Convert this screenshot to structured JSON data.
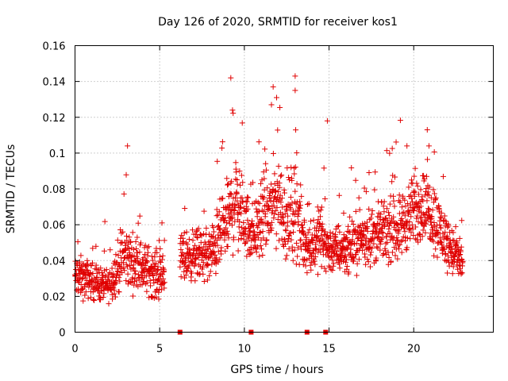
{
  "chart_data": {
    "type": "scatter",
    "title": "Day 126 of 2020, SRMTID for receiver kos1",
    "xlabel": "GPS time / hours",
    "ylabel": "SRMTID / TECUs",
    "xlim": [
      0,
      24.7
    ],
    "ylim": [
      0,
      0.16
    ],
    "xticks": [
      0,
      5,
      10,
      15,
      20
    ],
    "xtick_labels": [
      "0",
      "5",
      "10",
      "15",
      "20"
    ],
    "yticks": [
      0,
      0.02,
      0.04,
      0.06,
      0.08,
      0.1,
      0.12,
      0.14,
      0.16
    ],
    "ytick_labels": [
      "0",
      "0.02",
      "0.04",
      "0.06",
      "0.08",
      "0.1",
      "0.12",
      "0.14",
      "0.16"
    ],
    "grid": true,
    "marker": "+",
    "color": "#e00000",
    "series": [
      {
        "name": "SRMTID",
        "profile_note": "envelope of point cloud (hour, typical value, spread)",
        "profile": [
          [
            0.0,
            0.031,
            0.012
          ],
          [
            0.5,
            0.03,
            0.012
          ],
          [
            1.0,
            0.029,
            0.01
          ],
          [
            1.5,
            0.027,
            0.01
          ],
          [
            2.0,
            0.026,
            0.009
          ],
          [
            2.5,
            0.036,
            0.015
          ],
          [
            3.0,
            0.043,
            0.018
          ],
          [
            3.5,
            0.038,
            0.015
          ],
          [
            4.0,
            0.036,
            0.015
          ],
          [
            4.5,
            0.034,
            0.014
          ],
          [
            5.0,
            0.031,
            0.013
          ],
          [
            6.2,
            0.042,
            0.014
          ],
          [
            7.0,
            0.043,
            0.014
          ],
          [
            8.0,
            0.043,
            0.016
          ],
          [
            9.0,
            0.062,
            0.022
          ],
          [
            9.5,
            0.075,
            0.028
          ],
          [
            10.0,
            0.062,
            0.02
          ],
          [
            10.5,
            0.055,
            0.018
          ],
          [
            11.5,
            0.068,
            0.026
          ],
          [
            12.0,
            0.075,
            0.028
          ],
          [
            12.5,
            0.06,
            0.022
          ],
          [
            13.0,
            0.07,
            0.028
          ],
          [
            13.5,
            0.05,
            0.018
          ],
          [
            14.0,
            0.048,
            0.016
          ],
          [
            14.5,
            0.055,
            0.018
          ],
          [
            15.0,
            0.046,
            0.014
          ],
          [
            16.0,
            0.047,
            0.014
          ],
          [
            17.0,
            0.053,
            0.016
          ],
          [
            18.0,
            0.055,
            0.016
          ],
          [
            19.0,
            0.058,
            0.018
          ],
          [
            20.0,
            0.067,
            0.02
          ],
          [
            20.5,
            0.07,
            0.02
          ],
          [
            21.0,
            0.068,
            0.02
          ],
          [
            21.5,
            0.058,
            0.018
          ],
          [
            22.0,
            0.05,
            0.016
          ],
          [
            22.5,
            0.042,
            0.013
          ],
          [
            22.9,
            0.04,
            0.012
          ]
        ],
        "gaps": [
          [
            5.3,
            6.2
          ]
        ],
        "notable_peaks": [
          [
            3.1,
            0.104
          ],
          [
            9.2,
            0.142
          ],
          [
            9.3,
            0.124
          ],
          [
            11.7,
            0.137
          ],
          [
            11.6,
            0.127
          ],
          [
            13.0,
            0.143
          ],
          [
            13.0,
            0.135
          ],
          [
            14.9,
            0.118
          ],
          [
            20.8,
            0.113
          ],
          [
            20.9,
            0.104
          ],
          [
            19.6,
            0.104
          ]
        ]
      }
    ],
    "baseline_markers": [
      6.2,
      10.4,
      13.7,
      14.8
    ]
  }
}
